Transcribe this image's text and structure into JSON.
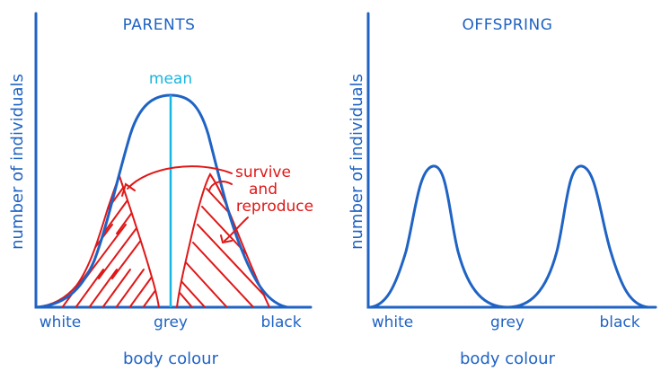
{
  "parents": {
    "title": "PARENTS",
    "ylabel": "number of individuals",
    "xlabel": "body colour",
    "ticks": [
      "white",
      "grey",
      "black"
    ],
    "mean_label": "mean",
    "annotation_lines": [
      "survive",
      "and",
      "reproduce"
    ]
  },
  "offspring": {
    "title": "OFFSPRING",
    "ylabel": "number of individuals",
    "xlabel": "body colour",
    "ticks": [
      "white",
      "grey",
      "black"
    ]
  },
  "colors": {
    "axis": "#1f63c4",
    "mean": "#18b6e0",
    "survivors": "#e01717"
  }
}
